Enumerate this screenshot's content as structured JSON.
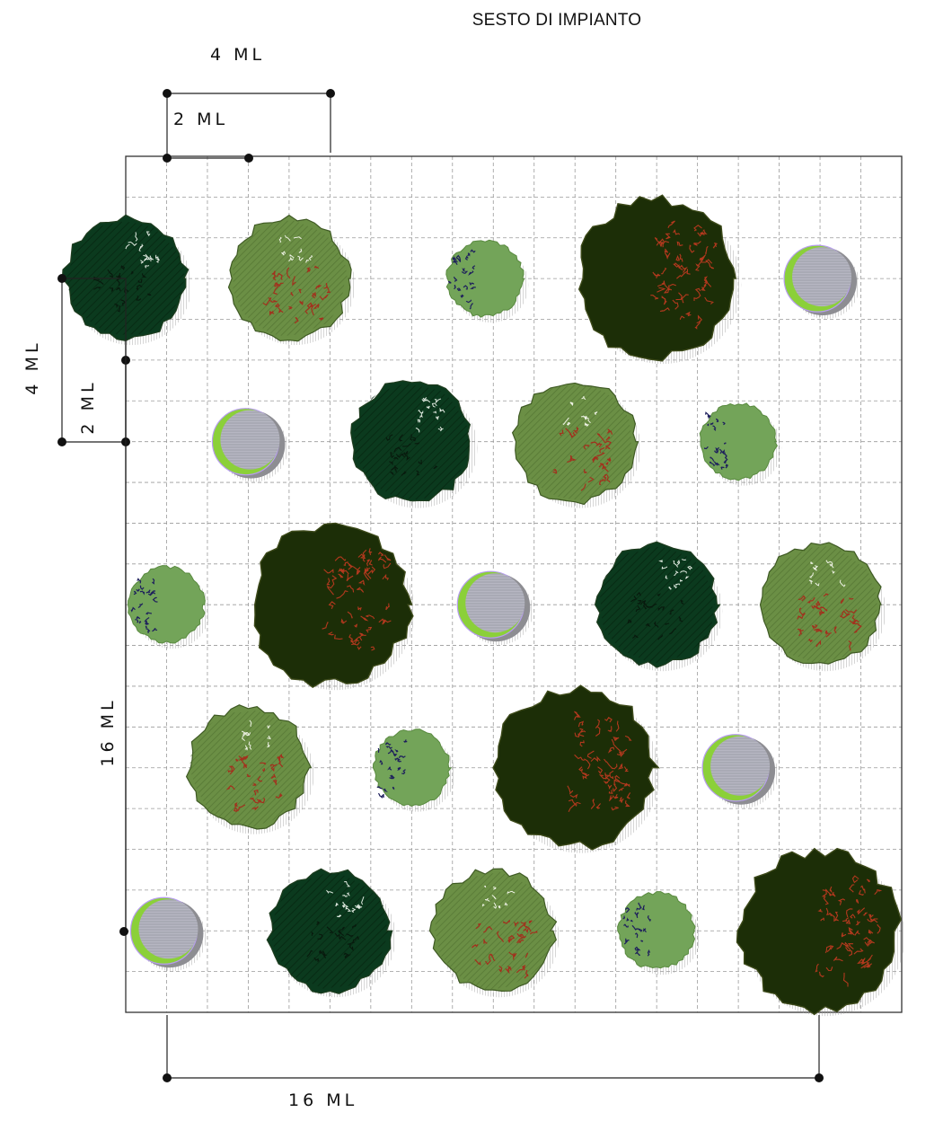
{
  "title": "SESTO DI IMPIANTO",
  "dimensions": {
    "top_4": "4 ML",
    "top_2": "2 ML",
    "left_4": "4 ML",
    "left_2": "2 ML",
    "left_16": "16 ML",
    "bottom_16": "16 ML"
  },
  "grid": {
    "cols": 19,
    "rows": 21,
    "cell_m": 1
  },
  "plant_types": {
    "dark-tree": {
      "fill": "#0b3a1e",
      "hatch": "#0f2a14"
    },
    "olive-tree": {
      "fill": "#6b8f45",
      "accent": "#a3301d"
    },
    "big-tree": {
      "fill": "#1c2e07",
      "accent": "#b3391e"
    },
    "shrub": {
      "fill": "#73a459",
      "speck": "#1d1e5c"
    },
    "gray-shrub": {
      "fill": "#a9a9b4",
      "accent": "#8bd039"
    }
  },
  "plants": [
    {
      "type": "dark-tree",
      "cx": 0,
      "cy": 3
    },
    {
      "type": "olive-tree",
      "cx": 4,
      "cy": 3
    },
    {
      "type": "shrub",
      "cx": 8.8,
      "cy": 3
    },
    {
      "type": "big-tree",
      "cx": 13,
      "cy": 3
    },
    {
      "type": "gray-shrub",
      "cx": 17,
      "cy": 3
    },
    {
      "type": "gray-shrub",
      "cx": 3,
      "cy": 7
    },
    {
      "type": "dark-tree",
      "cx": 7,
      "cy": 7
    },
    {
      "type": "olive-tree",
      "cx": 11,
      "cy": 7
    },
    {
      "type": "shrub",
      "cx": 15,
      "cy": 7
    },
    {
      "type": "shrub",
      "cx": 1,
      "cy": 11
    },
    {
      "type": "big-tree",
      "cx": 5,
      "cy": 11
    },
    {
      "type": "gray-shrub",
      "cx": 9,
      "cy": 11
    },
    {
      "type": "dark-tree",
      "cx": 13,
      "cy": 11
    },
    {
      "type": "olive-tree",
      "cx": 17,
      "cy": 11
    },
    {
      "type": "olive-tree",
      "cx": 3,
      "cy": 15
    },
    {
      "type": "shrub",
      "cx": 7,
      "cy": 15
    },
    {
      "type": "big-tree",
      "cx": 11,
      "cy": 15
    },
    {
      "type": "gray-shrub",
      "cx": 15,
      "cy": 15
    },
    {
      "type": "gray-shrub",
      "cx": 1,
      "cy": 19
    },
    {
      "type": "dark-tree",
      "cx": 5,
      "cy": 19
    },
    {
      "type": "olive-tree",
      "cx": 9,
      "cy": 19
    },
    {
      "type": "shrub",
      "cx": 13,
      "cy": 19
    },
    {
      "type": "big-tree",
      "cx": 17,
      "cy": 19
    }
  ]
}
